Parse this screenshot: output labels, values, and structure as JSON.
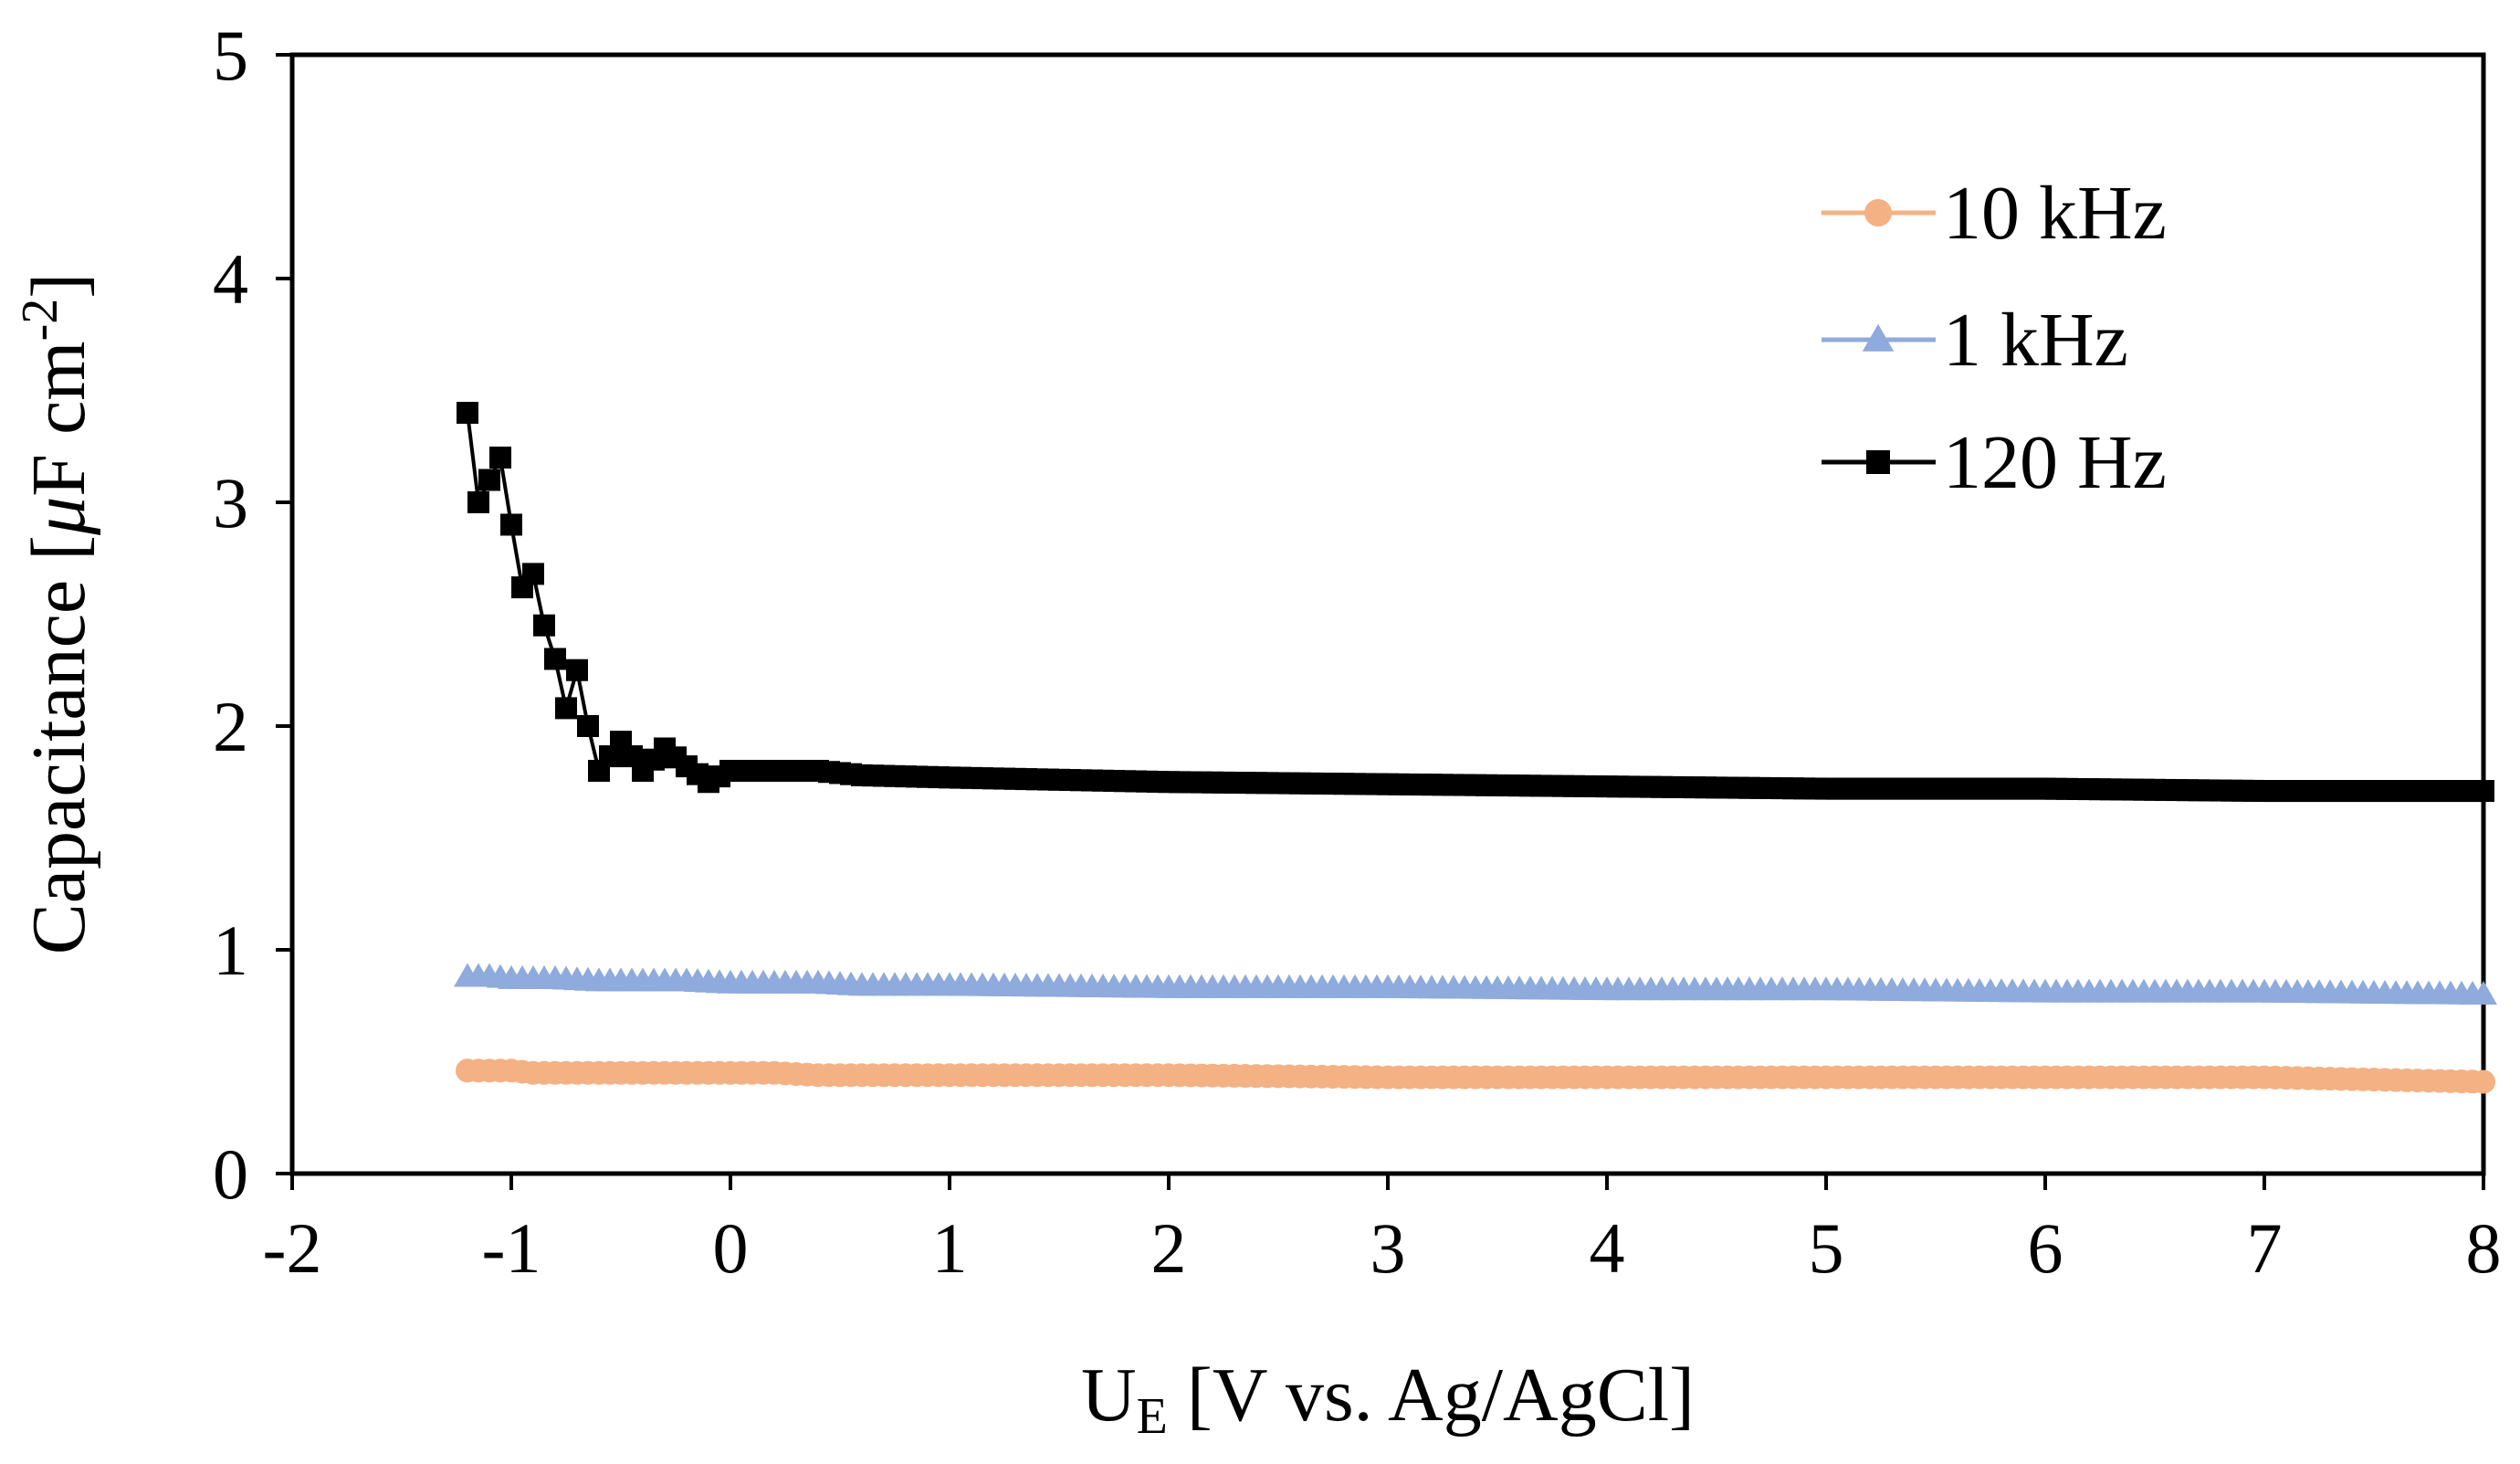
{
  "chart_data": {
    "type": "line",
    "title": "",
    "xlabel": {
      "main": "U",
      "sub": "E",
      "rest": " [V vs. Ag/AgCl]"
    },
    "ylabel": {
      "pre": "Capacitance [",
      "mu": "μ",
      "mid": "F cm",
      "sup": "-2",
      "post": "]"
    },
    "xlim": [
      -2,
      8
    ],
    "ylim": [
      0,
      5
    ],
    "xticks": [
      "-2",
      "-1",
      "0",
      "1",
      "2",
      "3",
      "4",
      "5",
      "6",
      "7",
      "8"
    ],
    "yticks": [
      "0",
      "1",
      "2",
      "3",
      "4",
      "5"
    ],
    "grid": false,
    "legend_position": "top-right",
    "series": [
      {
        "name": "10 kHz",
        "color": "#F4B183",
        "marker": "circle",
        "x": [
          -1.2,
          -1.1,
          -1.0,
          -0.9,
          -0.8,
          -0.6,
          -0.4,
          -0.2,
          0,
          0.2,
          0.4,
          0.6,
          1,
          2,
          3,
          4,
          5,
          6,
          7,
          8
        ],
        "y": [
          0.46,
          0.46,
          0.46,
          0.45,
          0.45,
          0.45,
          0.45,
          0.45,
          0.45,
          0.45,
          0.44,
          0.44,
          0.44,
          0.44,
          0.43,
          0.43,
          0.43,
          0.43,
          0.43,
          0.41
        ]
      },
      {
        "name": "1 kHz",
        "color": "#8FAADC",
        "marker": "triangle",
        "x": [
          -1.2,
          -1.1,
          -1.0,
          -0.9,
          -0.8,
          -0.6,
          -0.4,
          -0.2,
          0,
          0.2,
          0.4,
          0.6,
          1,
          2,
          3,
          4,
          5,
          6,
          7,
          8
        ],
        "y": [
          0.88,
          0.88,
          0.87,
          0.87,
          0.87,
          0.86,
          0.86,
          0.86,
          0.85,
          0.85,
          0.85,
          0.84,
          0.84,
          0.83,
          0.83,
          0.82,
          0.82,
          0.81,
          0.81,
          0.8
        ]
      },
      {
        "name": "120 Hz",
        "color": "#000000",
        "marker": "square",
        "x": [
          -1.2,
          -1.15,
          -1.1,
          -1.05,
          -1.0,
          -0.95,
          -0.9,
          -0.85,
          -0.8,
          -0.75,
          -0.7,
          -0.65,
          -0.6,
          -0.5,
          -0.4,
          -0.3,
          -0.2,
          -0.1,
          0,
          0.2,
          0.4,
          0.6,
          1,
          1.5,
          2,
          3,
          4,
          5,
          6,
          7,
          8
        ],
        "y": [
          3.4,
          3.0,
          3.1,
          3.2,
          2.9,
          2.62,
          2.68,
          2.45,
          2.3,
          2.08,
          2.25,
          2.0,
          1.8,
          1.93,
          1.8,
          1.9,
          1.82,
          1.75,
          1.8,
          1.8,
          1.8,
          1.78,
          1.77,
          1.76,
          1.75,
          1.74,
          1.73,
          1.72,
          1.72,
          1.71,
          1.71
        ]
      }
    ]
  }
}
